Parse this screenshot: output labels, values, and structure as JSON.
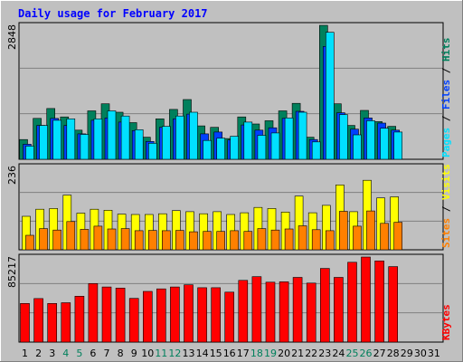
{
  "chart_data": {
    "type": "bar",
    "title": "Daily usage for February 2017",
    "x": [
      "1",
      "2",
      "3",
      "4",
      "5",
      "6",
      "7",
      "8",
      "9",
      "10",
      "11",
      "12",
      "13",
      "14",
      "15",
      "16",
      "17",
      "18",
      "19",
      "20",
      "21",
      "22",
      "23",
      "24",
      "25",
      "26",
      "27",
      "28",
      "29",
      "30",
      "31"
    ],
    "weekend_days": [
      "4",
      "5",
      "11",
      "12",
      "18",
      "19",
      "25",
      "26"
    ],
    "panels": [
      {
        "name": "hits-files-pages",
        "ymax": 2848,
        "ymax_label": "2848",
        "side_label": [
          {
            "text": "Pages",
            "color": "#00e0ff"
          },
          {
            "text": " / ",
            "color": "#000000"
          },
          {
            "text": "Files",
            "color": "#0040ff"
          },
          {
            "text": " / ",
            "color": "#000000"
          },
          {
            "text": "Hits",
            "color": "#00805c"
          }
        ],
        "series": [
          {
            "name": "Hits",
            "color": "#00805c",
            "values": [
              420,
              870,
              1080,
              900,
              620,
              1030,
              1180,
              1000,
              780,
              470,
              860,
              1060,
              1270,
              710,
              680,
              440,
              900,
              750,
              820,
              1030,
              1190,
              470,
              2848,
              1180,
              720,
              1040,
              800,
              700,
              null,
              null,
              null
            ]
          },
          {
            "name": "Files",
            "color": "#0040ff",
            "values": [
              320,
              720,
              870,
              720,
              540,
              830,
              880,
              790,
              610,
              380,
              680,
              860,
              960,
              540,
              580,
              410,
              730,
              620,
              670,
              870,
              1020,
              420,
              2400,
              990,
              640,
              880,
              770,
              620,
              null,
              null,
              null
            ]
          },
          {
            "name": "Pages",
            "color": "#00e0ff",
            "values": [
              280,
              720,
              830,
              860,
              530,
              860,
              1030,
              920,
              630,
              340,
              700,
              920,
              1000,
              400,
              450,
              490,
              790,
              510,
              560,
              880,
              1000,
              370,
              2700,
              950,
              520,
              820,
              660,
              580,
              null,
              null,
              null
            ]
          }
        ]
      },
      {
        "name": "visits-sites",
        "ymax": 236,
        "ymax_label": "236",
        "side_label": [
          {
            "text": "Sites",
            "color": "#ff8000"
          },
          {
            "text": " / ",
            "color": "#000000"
          },
          {
            "text": "Visits",
            "color": "#ffff00"
          }
        ],
        "series": [
          {
            "name": "Visits",
            "color": "#ffff00",
            "values": [
              95,
              115,
              117,
              155,
              104,
              115,
              112,
              101,
              100,
              100,
              102,
              111,
              108,
              102,
              108,
              100,
              105,
              120,
              117,
              107,
              152,
              105,
              126,
              184,
              108,
              197,
              147,
              150,
              null,
              null,
              null
            ]
          },
          {
            "name": "Sites",
            "color": "#ff8000",
            "values": [
              41,
              60,
              56,
              80,
              58,
              67,
              59,
              60,
              54,
              55,
              54,
              55,
              51,
              52,
              52,
              54,
              52,
              60,
              56,
              59,
              68,
              57,
              54,
              109,
              67,
              110,
              75,
              78,
              null,
              null,
              null
            ]
          }
        ]
      },
      {
        "name": "kbytes",
        "ymax": 85217,
        "ymax_label": "85217",
        "side_label": [
          {
            "text": "KBytes",
            "color": "#ff0000"
          }
        ],
        "series": [
          {
            "name": "KBytes",
            "color": "#ff0000",
            "values": [
              38700,
              43600,
              38700,
              39400,
              46000,
              58700,
              55200,
              54100,
              43800,
              50800,
              53300,
              55200,
              57400,
              54500,
              54500,
              50000,
              61800,
              65500,
              60000,
              60400,
              64800,
              59100,
              73800,
              64800,
              80000,
              85217,
              81300,
              75600,
              null,
              null,
              null
            ]
          }
        ]
      }
    ]
  },
  "colors": {
    "background": "#c0c0c0",
    "plot_background": "#c0c0c0",
    "title": "#0000ff",
    "weekend_label": "#00805c",
    "weekday_label": "#000000"
  }
}
